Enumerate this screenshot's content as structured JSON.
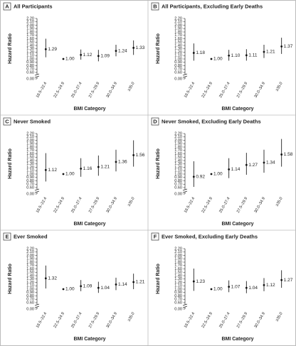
{
  "chart_data": [
    {
      "type": "errorbar",
      "panel": "A",
      "title": "All Participants",
      "xlabel": "BMI Category",
      "ylabel": "Hazard Ratio",
      "categories": [
        "18.5–22.4",
        "22.5–24.9",
        "25.0–27.4",
        "27.5–29.9",
        "30.0–34.9",
        "≥35.0"
      ],
      "values": [
        1.29,
        1.0,
        1.12,
        1.09,
        1.24,
        1.33
      ],
      "value_labels": [
        "1.29",
        "1.00",
        "1.12",
        "1.09",
        "1.24",
        "1.33"
      ],
      "lower": [
        1.05,
        null,
        0.98,
        0.93,
        1.08,
        1.12
      ],
      "upper": [
        1.6,
        null,
        1.28,
        1.27,
        1.42,
        1.55
      ],
      "ylim": [
        0,
        2.2
      ],
      "y_break": [
        0,
        0.6
      ],
      "yticks": [
        {
          "value": 0,
          "label": "0.00"
        },
        {
          "value": 0.6,
          "label": "0.60"
        },
        {
          "value": 0.7,
          "label": "0.70"
        },
        {
          "value": 0.8,
          "label": "0.80"
        },
        {
          "value": 0.9,
          "label": "0.90"
        },
        {
          "value": 1.0,
          "label": "1.00"
        },
        {
          "value": 1.1,
          "label": "1.10"
        },
        {
          "value": 1.2,
          "label": "1.20"
        },
        {
          "value": 1.3,
          "label": "1.30"
        },
        {
          "value": 1.4,
          "label": "1.40"
        },
        {
          "value": 1.5,
          "label": "1.50"
        },
        {
          "value": 1.6,
          "label": "1.60"
        },
        {
          "value": 1.7,
          "label": "1.70"
        },
        {
          "value": 1.8,
          "label": "1.80"
        },
        {
          "value": 1.9,
          "label": "1.90"
        },
        {
          "value": 2.0,
          "label": "2.00"
        },
        {
          "value": 2.1,
          "label": "2.10"
        },
        {
          "value": 2.2,
          "label": "2.20"
        }
      ]
    },
    {
      "type": "errorbar",
      "panel": "B",
      "title": "All Participants, Excluding Early Deaths",
      "xlabel": "BMI Category",
      "ylabel": "Hazard Ratio",
      "categories": [
        "18.5–22.4",
        "22.5–24.9",
        "25.0–27.4",
        "27.5–29.9",
        "30.0–34.9",
        "≥35.0"
      ],
      "values": [
        1.18,
        1.0,
        1.1,
        1.11,
        1.21,
        1.37
      ],
      "value_labels": [
        "1.18",
        "1.00",
        "1.10",
        "1.11",
        "1.21",
        "1.37"
      ],
      "lower": [
        0.95,
        null,
        0.95,
        0.95,
        1.03,
        1.15
      ],
      "upper": [
        1.46,
        null,
        1.27,
        1.29,
        1.42,
        1.63
      ],
      "ylim": [
        0,
        2.2
      ],
      "y_break": [
        0,
        0.6
      ],
      "yticks": [
        {
          "value": 0,
          "label": "0.00"
        },
        {
          "value": 0.6,
          "label": "0.60"
        },
        {
          "value": 0.7,
          "label": "0.70"
        },
        {
          "value": 0.8,
          "label": "0.80"
        },
        {
          "value": 0.9,
          "label": "0.90"
        },
        {
          "value": 1.0,
          "label": "1.00"
        },
        {
          "value": 1.1,
          "label": "1.10"
        },
        {
          "value": 1.2,
          "label": "1.20"
        },
        {
          "value": 1.3,
          "label": "1.30"
        },
        {
          "value": 1.4,
          "label": "1.40"
        },
        {
          "value": 1.5,
          "label": "1.50"
        },
        {
          "value": 1.6,
          "label": "1.60"
        },
        {
          "value": 1.7,
          "label": "1.70"
        },
        {
          "value": 1.8,
          "label": "1.80"
        },
        {
          "value": 1.9,
          "label": "1.90"
        },
        {
          "value": 2.0,
          "label": "2.00"
        },
        {
          "value": 2.1,
          "label": "2.10"
        },
        {
          "value": 2.2,
          "label": "2.20"
        }
      ]
    },
    {
      "type": "errorbar",
      "panel": "C",
      "title": "Never Smoked",
      "xlabel": "BMI Category",
      "ylabel": "Hazard Ratio",
      "categories": [
        "18.5–22.4",
        "22.5–24.9",
        "25.0–27.4",
        "27.5–29.9",
        "30.0–34.9",
        "≥35.0"
      ],
      "values": [
        1.12,
        1.0,
        1.16,
        1.21,
        1.36,
        1.56
      ],
      "value_labels": [
        "1.12",
        "1.00",
        "1.16",
        "1.21",
        "1.36",
        "1.56"
      ],
      "lower": [
        0.78,
        null,
        0.92,
        0.95,
        1.08,
        1.22
      ],
      "upper": [
        1.62,
        null,
        1.47,
        1.55,
        1.72,
        2.0
      ],
      "ylim": [
        0,
        2.2
      ],
      "y_break": [
        0,
        0.6
      ],
      "yticks": [
        {
          "value": 0,
          "label": "0.00"
        },
        {
          "value": 0.6,
          "label": "0.60"
        },
        {
          "value": 0.7,
          "label": "0.70"
        },
        {
          "value": 0.8,
          "label": "0.80"
        },
        {
          "value": 0.9,
          "label": "0.90"
        },
        {
          "value": 1.0,
          "label": "1.00"
        },
        {
          "value": 1.1,
          "label": "1.10"
        },
        {
          "value": 1.2,
          "label": "1.20"
        },
        {
          "value": 1.3,
          "label": "1.30"
        },
        {
          "value": 1.4,
          "label": "1.40"
        },
        {
          "value": 1.5,
          "label": "1.50"
        },
        {
          "value": 1.6,
          "label": "1.60"
        },
        {
          "value": 1.7,
          "label": "1.70"
        },
        {
          "value": 1.8,
          "label": "1.80"
        },
        {
          "value": 1.9,
          "label": "1.90"
        },
        {
          "value": 2.0,
          "label": "2.00"
        },
        {
          "value": 2.1,
          "label": "2.10"
        },
        {
          "value": 2.2,
          "label": "2.20"
        }
      ]
    },
    {
      "type": "errorbar",
      "panel": "D",
      "title": "Never Smoked, Excluding Early Deaths",
      "xlabel": "BMI Category",
      "ylabel": "Hazard Ratio",
      "categories": [
        "18.5–22.4",
        "22.5–24.9",
        "25.0–27.4",
        "27.5–29.9",
        "30.0–34.9",
        "≥35.0"
      ],
      "values": [
        0.92,
        1.0,
        1.14,
        1.27,
        1.34,
        1.58
      ],
      "value_labels": [
        "0.92",
        "1.00",
        "1.14",
        "1.27",
        "1.34",
        "1.58"
      ],
      "lower": [
        0.62,
        null,
        0.88,
        0.98,
        1.04,
        1.22
      ],
      "upper": [
        1.38,
        null,
        1.47,
        1.63,
        1.72,
        2.04
      ],
      "ylim": [
        0,
        2.2
      ],
      "y_break": [
        0,
        0.6
      ],
      "yticks": [
        {
          "value": 0,
          "label": "0.00"
        },
        {
          "value": 0.6,
          "label": "0.60"
        },
        {
          "value": 0.7,
          "label": "0.70"
        },
        {
          "value": 0.8,
          "label": "0.80"
        },
        {
          "value": 0.9,
          "label": "0.90"
        },
        {
          "value": 1.0,
          "label": "1.00"
        },
        {
          "value": 1.1,
          "label": "1.10"
        },
        {
          "value": 1.2,
          "label": "1.20"
        },
        {
          "value": 1.3,
          "label": "1.30"
        },
        {
          "value": 1.4,
          "label": "1.40"
        },
        {
          "value": 1.5,
          "label": "1.50"
        },
        {
          "value": 1.6,
          "label": "1.60"
        },
        {
          "value": 1.7,
          "label": "1.70"
        },
        {
          "value": 1.8,
          "label": "1.80"
        },
        {
          "value": 1.9,
          "label": "1.90"
        },
        {
          "value": 2.0,
          "label": "2.00"
        },
        {
          "value": 2.1,
          "label": "2.10"
        },
        {
          "value": 2.2,
          "label": "2.20"
        }
      ]
    },
    {
      "type": "errorbar",
      "panel": "E",
      "title": "Ever Smoked",
      "xlabel": "BMI Category",
      "ylabel": "Hazard Ratio",
      "categories": [
        "18.5–22.4",
        "22.5–24.9",
        "25.0–27.4",
        "27.5–29.9",
        "30.0–34.9",
        "≥35.0"
      ],
      "values": [
        1.32,
        1.0,
        1.09,
        1.04,
        1.14,
        1.21
      ],
      "value_labels": [
        "1.32",
        "1.00",
        "1.09",
        "1.04",
        "1.14",
        "1.21"
      ],
      "lower": [
        1.02,
        null,
        0.94,
        0.89,
        0.97,
        1.0
      ],
      "upper": [
        1.7,
        null,
        1.27,
        1.22,
        1.34,
        1.46
      ],
      "ylim": [
        0,
        2.2
      ],
      "y_break": [
        0,
        0.6
      ],
      "yticks": [
        {
          "value": 0,
          "label": "0.00"
        },
        {
          "value": 0.6,
          "label": "0.60"
        },
        {
          "value": 0.7,
          "label": "0.70"
        },
        {
          "value": 0.8,
          "label": "0.80"
        },
        {
          "value": 0.9,
          "label": "0.90"
        },
        {
          "value": 1.0,
          "label": "1.00"
        },
        {
          "value": 1.1,
          "label": "1.10"
        },
        {
          "value": 1.2,
          "label": "1.20"
        },
        {
          "value": 1.3,
          "label": "1.30"
        },
        {
          "value": 1.4,
          "label": "1.40"
        },
        {
          "value": 1.5,
          "label": "1.50"
        },
        {
          "value": 1.6,
          "label": "1.60"
        },
        {
          "value": 1.7,
          "label": "1.70"
        },
        {
          "value": 1.8,
          "label": "1.80"
        },
        {
          "value": 1.9,
          "label": "1.90"
        },
        {
          "value": 2.0,
          "label": "2.00"
        },
        {
          "value": 2.1,
          "label": "2.10"
        },
        {
          "value": 2.2,
          "label": "2.20"
        }
      ]
    },
    {
      "type": "errorbar",
      "panel": "F",
      "title": "Ever Smoked, Excluding Early Deaths",
      "xlabel": "BMI Category",
      "ylabel": "Hazard Ratio",
      "categories": [
        "18.5–22.4",
        "22.5–24.9",
        "25.0–27.4",
        "27.5–29.9",
        "30.0–34.9",
        "≥35.0"
      ],
      "values": [
        1.23,
        1.0,
        1.07,
        1.04,
        1.12,
        1.27
      ],
      "value_labels": [
        "1.23",
        "1.00",
        "1.07",
        "1.04",
        "1.12",
        "1.27"
      ],
      "lower": [
        0.95,
        null,
        0.91,
        0.88,
        0.94,
        1.04
      ],
      "upper": [
        1.61,
        null,
        1.26,
        1.24,
        1.33,
        1.56
      ],
      "ylim": [
        0,
        2.2
      ],
      "y_break": [
        0,
        0.6
      ],
      "yticks": [
        {
          "value": 0,
          "label": "0.00"
        },
        {
          "value": 0.6,
          "label": "0.60"
        },
        {
          "value": 0.7,
          "label": "0.70"
        },
        {
          "value": 0.8,
          "label": "0.80"
        },
        {
          "value": 0.9,
          "label": "0.90"
        },
        {
          "value": 1.0,
          "label": "1.00"
        },
        {
          "value": 1.1,
          "label": "1.10"
        },
        {
          "value": 1.2,
          "label": "1.20"
        },
        {
          "value": 1.3,
          "label": "1.30"
        },
        {
          "value": 1.4,
          "label": "1.40"
        },
        {
          "value": 1.5,
          "label": "1.50"
        },
        {
          "value": 1.6,
          "label": "1.60"
        },
        {
          "value": 1.7,
          "label": "1.70"
        },
        {
          "value": 1.8,
          "label": "1.80"
        },
        {
          "value": 1.9,
          "label": "1.90"
        },
        {
          "value": 2.0,
          "label": "2.00"
        },
        {
          "value": 2.1,
          "label": "2.10"
        },
        {
          "value": 2.2,
          "label": "2.20"
        }
      ]
    }
  ]
}
